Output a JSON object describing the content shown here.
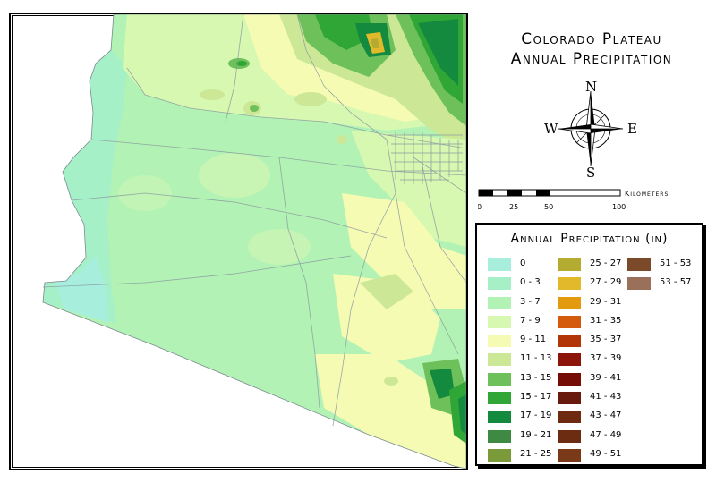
{
  "title": {
    "line1": "Colorado Plateau",
    "line2": "Annual Precipitation"
  },
  "compass": {
    "n": "N",
    "s": "S",
    "e": "E",
    "w": "W"
  },
  "scale": {
    "unit": "Kilometers",
    "ticks": [
      "0",
      "25",
      "50",
      "100"
    ]
  },
  "legend": {
    "title": "Annual Precipitation (in)",
    "items": [
      {
        "label": "0",
        "color": "#a8eedd"
      },
      {
        "label": "0 - 3",
        "color": "#a6f0c8"
      },
      {
        "label": "3 - 7",
        "color": "#b2f2b4"
      },
      {
        "label": "7 - 9",
        "color": "#d6f8b0"
      },
      {
        "label": "9 - 11",
        "color": "#f6fbb4"
      },
      {
        "label": "11 - 13",
        "color": "#cce896"
      },
      {
        "label": "13 - 15",
        "color": "#6dc05a"
      },
      {
        "label": "15 - 17",
        "color": "#2fa636"
      },
      {
        "label": "17 - 19",
        "color": "#148a3e"
      },
      {
        "label": "19 - 21",
        "color": "#3e8a44"
      },
      {
        "label": "21 - 25",
        "color": "#7b9a3a"
      },
      {
        "label": "25 - 27",
        "color": "#b3ac30"
      },
      {
        "label": "27 - 29",
        "color": "#e2b92a"
      },
      {
        "label": "29 - 31",
        "color": "#e49a0e"
      },
      {
        "label": "31 - 35",
        "color": "#d45a0c"
      },
      {
        "label": "35 - 37",
        "color": "#b2350a"
      },
      {
        "label": "37 - 39",
        "color": "#8c1408"
      },
      {
        "label": "39 - 41",
        "color": "#760c06"
      },
      {
        "label": "41 - 43",
        "color": "#681a0c"
      },
      {
        "label": "43 - 47",
        "color": "#6e2a10"
      },
      {
        "label": "47 - 49",
        "color": "#6c2c12"
      },
      {
        "label": "49 - 51",
        "color": "#7a3a1a"
      },
      {
        "label": "51 - 53",
        "color": "#7a4a2a"
      },
      {
        "label": "53 - 57",
        "color": "#9a705a"
      }
    ]
  }
}
